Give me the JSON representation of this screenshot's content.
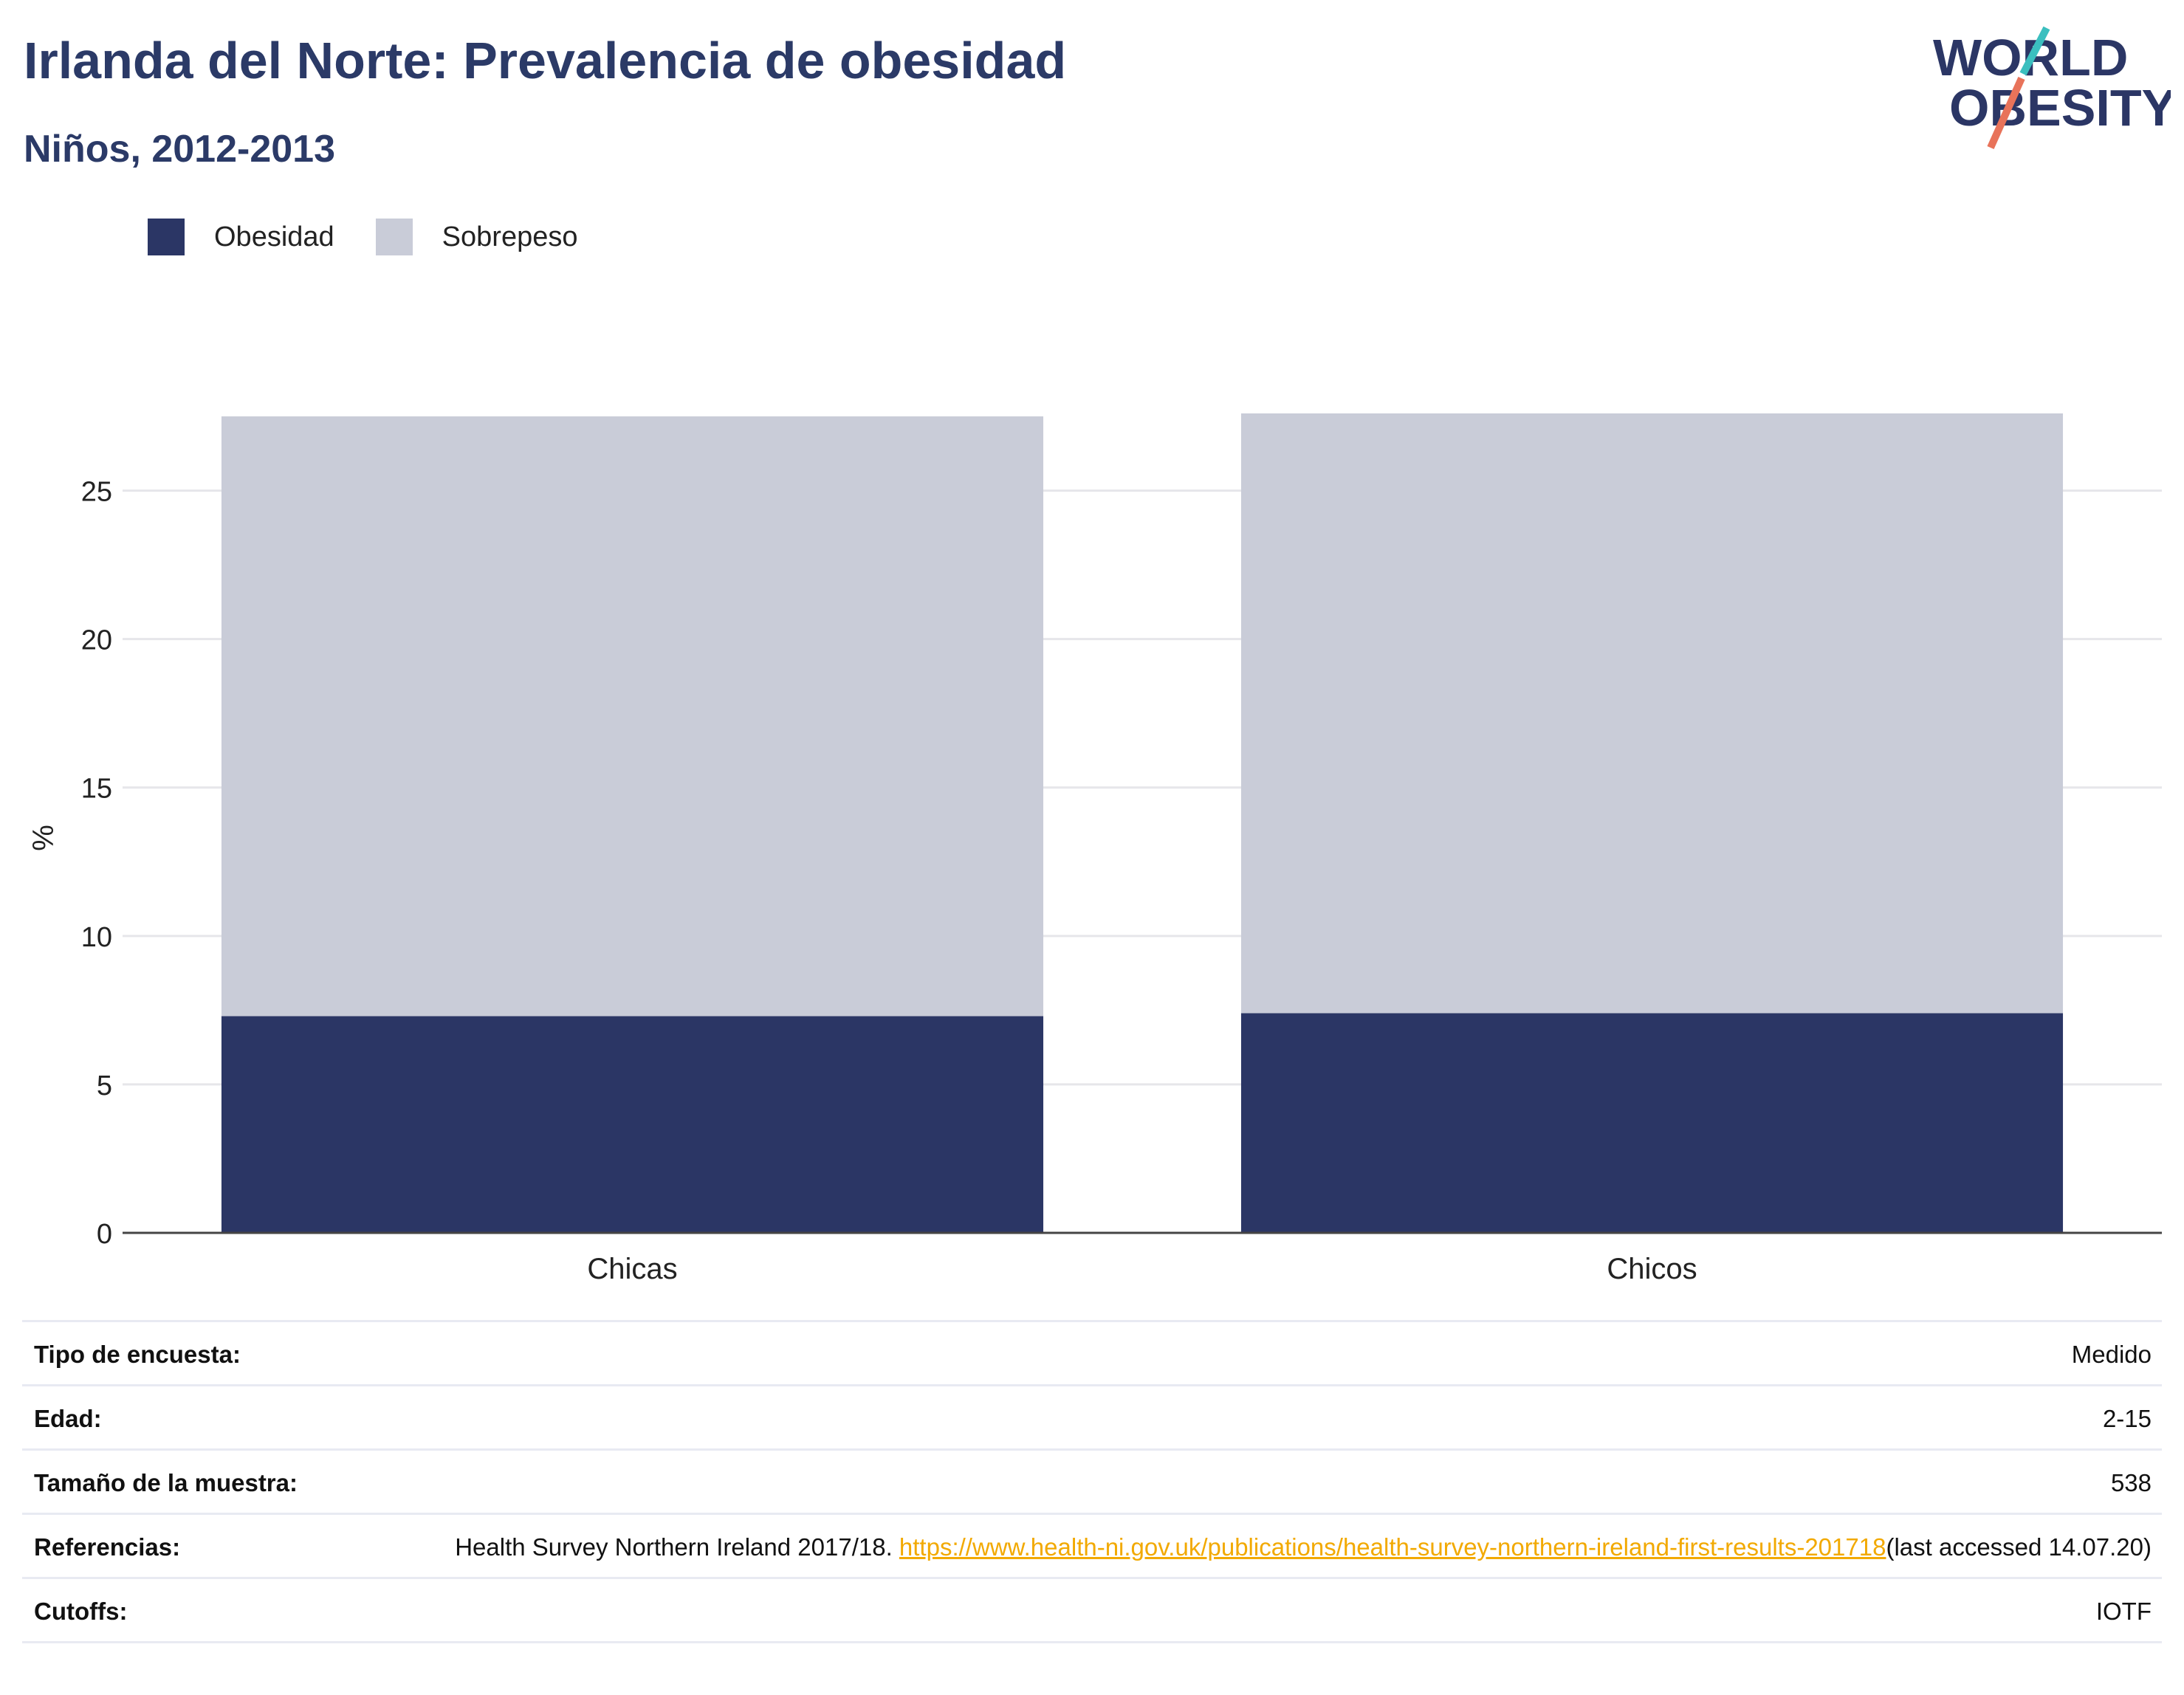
{
  "header": {
    "title": "Irlanda del Norte: Prevalencia de obesidad",
    "subtitle": "Niños, 2012-2013"
  },
  "logo": {
    "line1": "WORLD",
    "line2": "OBESITY",
    "accent_teal": "#3bbfbf",
    "accent_coral": "#e8735a"
  },
  "legend": [
    {
      "label": "Obesidad",
      "color": "#2b3665"
    },
    {
      "label": "Sobrepeso",
      "color": "#c9ccd8"
    }
  ],
  "chart_data": {
    "type": "bar",
    "stacked": true,
    "categories": [
      "Chicas",
      "Chicos"
    ],
    "series": [
      {
        "name": "Obesidad",
        "values": [
          7.3,
          7.4
        ],
        "color": "#2b3665"
      },
      {
        "name": "Sobrepeso",
        "values": [
          20.2,
          20.2
        ],
        "color": "#c9ccd8"
      }
    ],
    "ylabel": "%",
    "ylim": [
      0,
      27.6
    ],
    "yticks": [
      0,
      5,
      10,
      15,
      20,
      25
    ],
    "grid": true,
    "legend_position": "top-left"
  },
  "info": {
    "rows": [
      {
        "label": "Tipo de encuesta:",
        "value": "Medido"
      },
      {
        "label": "Edad:",
        "value": "2-15"
      },
      {
        "label": "Tamaño de la muestra:",
        "value": "538"
      }
    ],
    "references": {
      "label": "Referencias:",
      "text": "Health Survey Northern Ireland 2017/18. ",
      "link": "https://www.health-ni.gov.uk/publications/health-survey-northern-ireland-first-results-201718",
      "suffix": "(last accessed 14.07.20)"
    },
    "cutoffs": {
      "label": "Cutoffs:",
      "value": "IOTF"
    }
  }
}
